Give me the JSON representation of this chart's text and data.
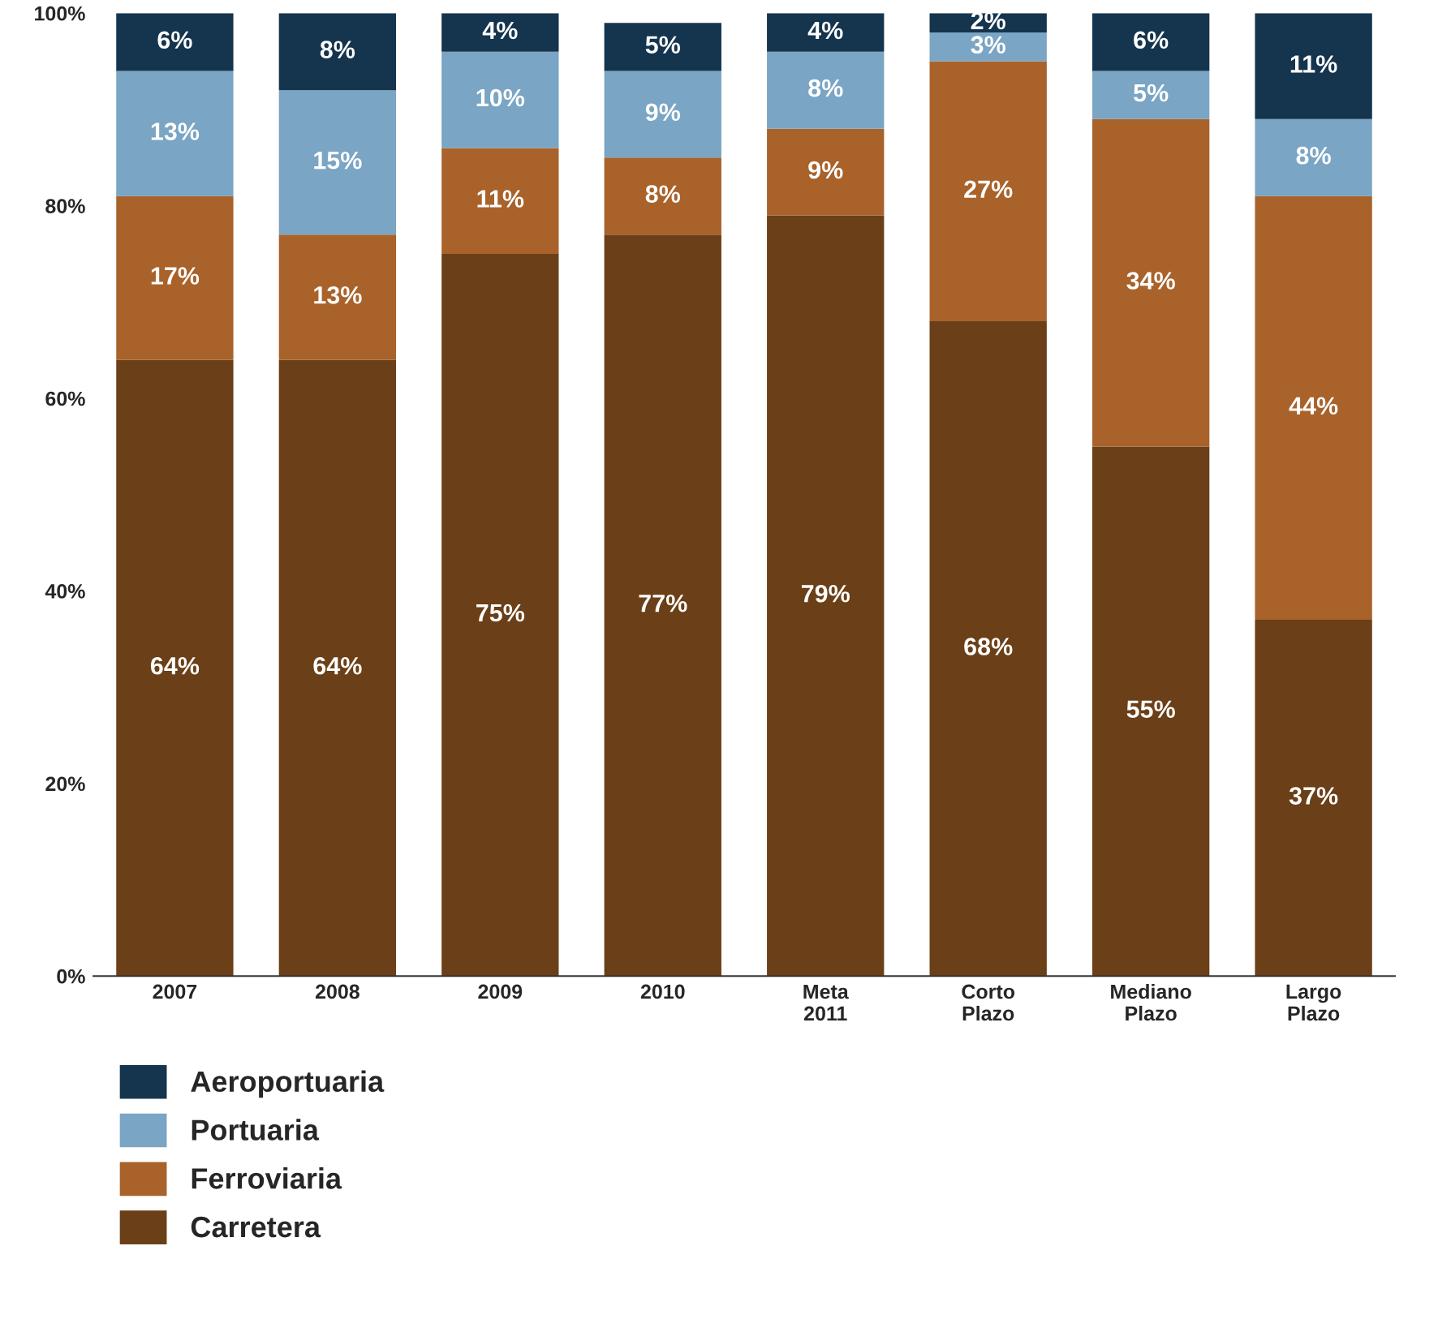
{
  "chart_data": {
    "type": "bar",
    "stacked": true,
    "categories": [
      "2007",
      "2008",
      "2009",
      "2010",
      "Meta\n2011",
      "Corto\nPlazo",
      "Mediano\nPlazo",
      "Largo\nPlazo"
    ],
    "series": [
      {
        "name": "Carretera",
        "color": "#6b3f17",
        "values": [
          64,
          64,
          75,
          77,
          79,
          68,
          55,
          37
        ],
        "value_labels": [
          "64%",
          "64%",
          "75%",
          "77%",
          "79%",
          "68%",
          "55%",
          "37%"
        ]
      },
      {
        "name": "Ferroviaria",
        "color": "#a8622a",
        "values": [
          17,
          13,
          11,
          8,
          9,
          27,
          34,
          44
        ],
        "value_labels": [
          "17%",
          "13%",
          "11%",
          "8%",
          "9%",
          "27%",
          "34%",
          "44%"
        ]
      },
      {
        "name": "Portuaria",
        "color": "#7aa5c4",
        "values": [
          13,
          15,
          10,
          9,
          8,
          3,
          5,
          8
        ],
        "value_labels": [
          "13%",
          "15%",
          "10%",
          "9%",
          "8%",
          "3%",
          "5%",
          "8%"
        ]
      },
      {
        "name": "Aeroportuaria",
        "color": "#15344d",
        "values": [
          6,
          8,
          4,
          5,
          4,
          2,
          6,
          11
        ],
        "value_labels": [
          "6%",
          "8%",
          "4%",
          "5%",
          "4%",
          "2%",
          "6%",
          "11%"
        ]
      }
    ],
    "ylim": [
      0,
      100
    ],
    "yticks": [
      {
        "value": 0,
        "label": "0%"
      },
      {
        "value": 20,
        "label": "20%"
      },
      {
        "value": 40,
        "label": "40%"
      },
      {
        "value": 60,
        "label": "60%"
      },
      {
        "value": 80,
        "label": "80%"
      },
      {
        "value": 100,
        "label": "100%"
      }
    ],
    "grid": false,
    "legend": "bottom left"
  }
}
